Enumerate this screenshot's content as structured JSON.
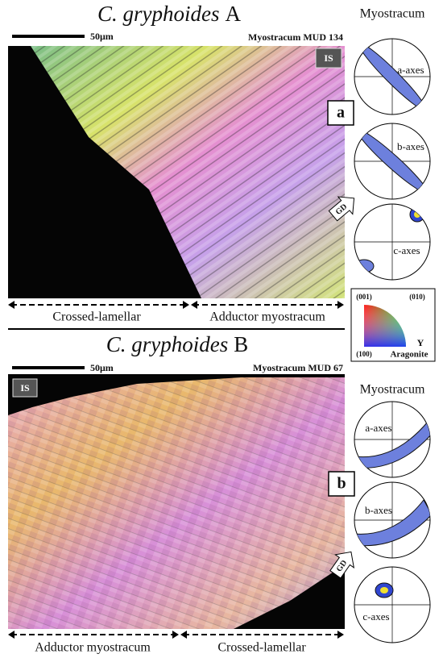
{
  "panel_a": {
    "title_species": "C. gryphoides",
    "title_letter": "A",
    "scale_bar": "50μm",
    "sample": "Myostracum MUD 134",
    "inner_surface": "IS",
    "panel_label": "a",
    "pole_figure_title": "Myostracum",
    "pole_figures": [
      "a-axes",
      "b-axes",
      "c-axes"
    ],
    "direction": "GD",
    "regions": [
      "Crossed-lamellar",
      "Adductor myostracum"
    ]
  },
  "legend": {
    "corners": [
      "(001)",
      "(010)",
      "(100)"
    ],
    "axis": "Y",
    "mineral": "Aragonite"
  },
  "panel_b": {
    "title_species": "C. gryphoides",
    "title_letter": "B",
    "scale_bar": "50μm",
    "sample": "Myostracum MUD 67",
    "inner_surface": "IS",
    "panel_label": "b",
    "pole_figure_title": "Myostracum",
    "pole_figures": [
      "a-axes",
      "b-axes",
      "c-axes"
    ],
    "direction": "GD",
    "regions": [
      "Adductor myostracum",
      "Crossed-lamellar"
    ]
  }
}
